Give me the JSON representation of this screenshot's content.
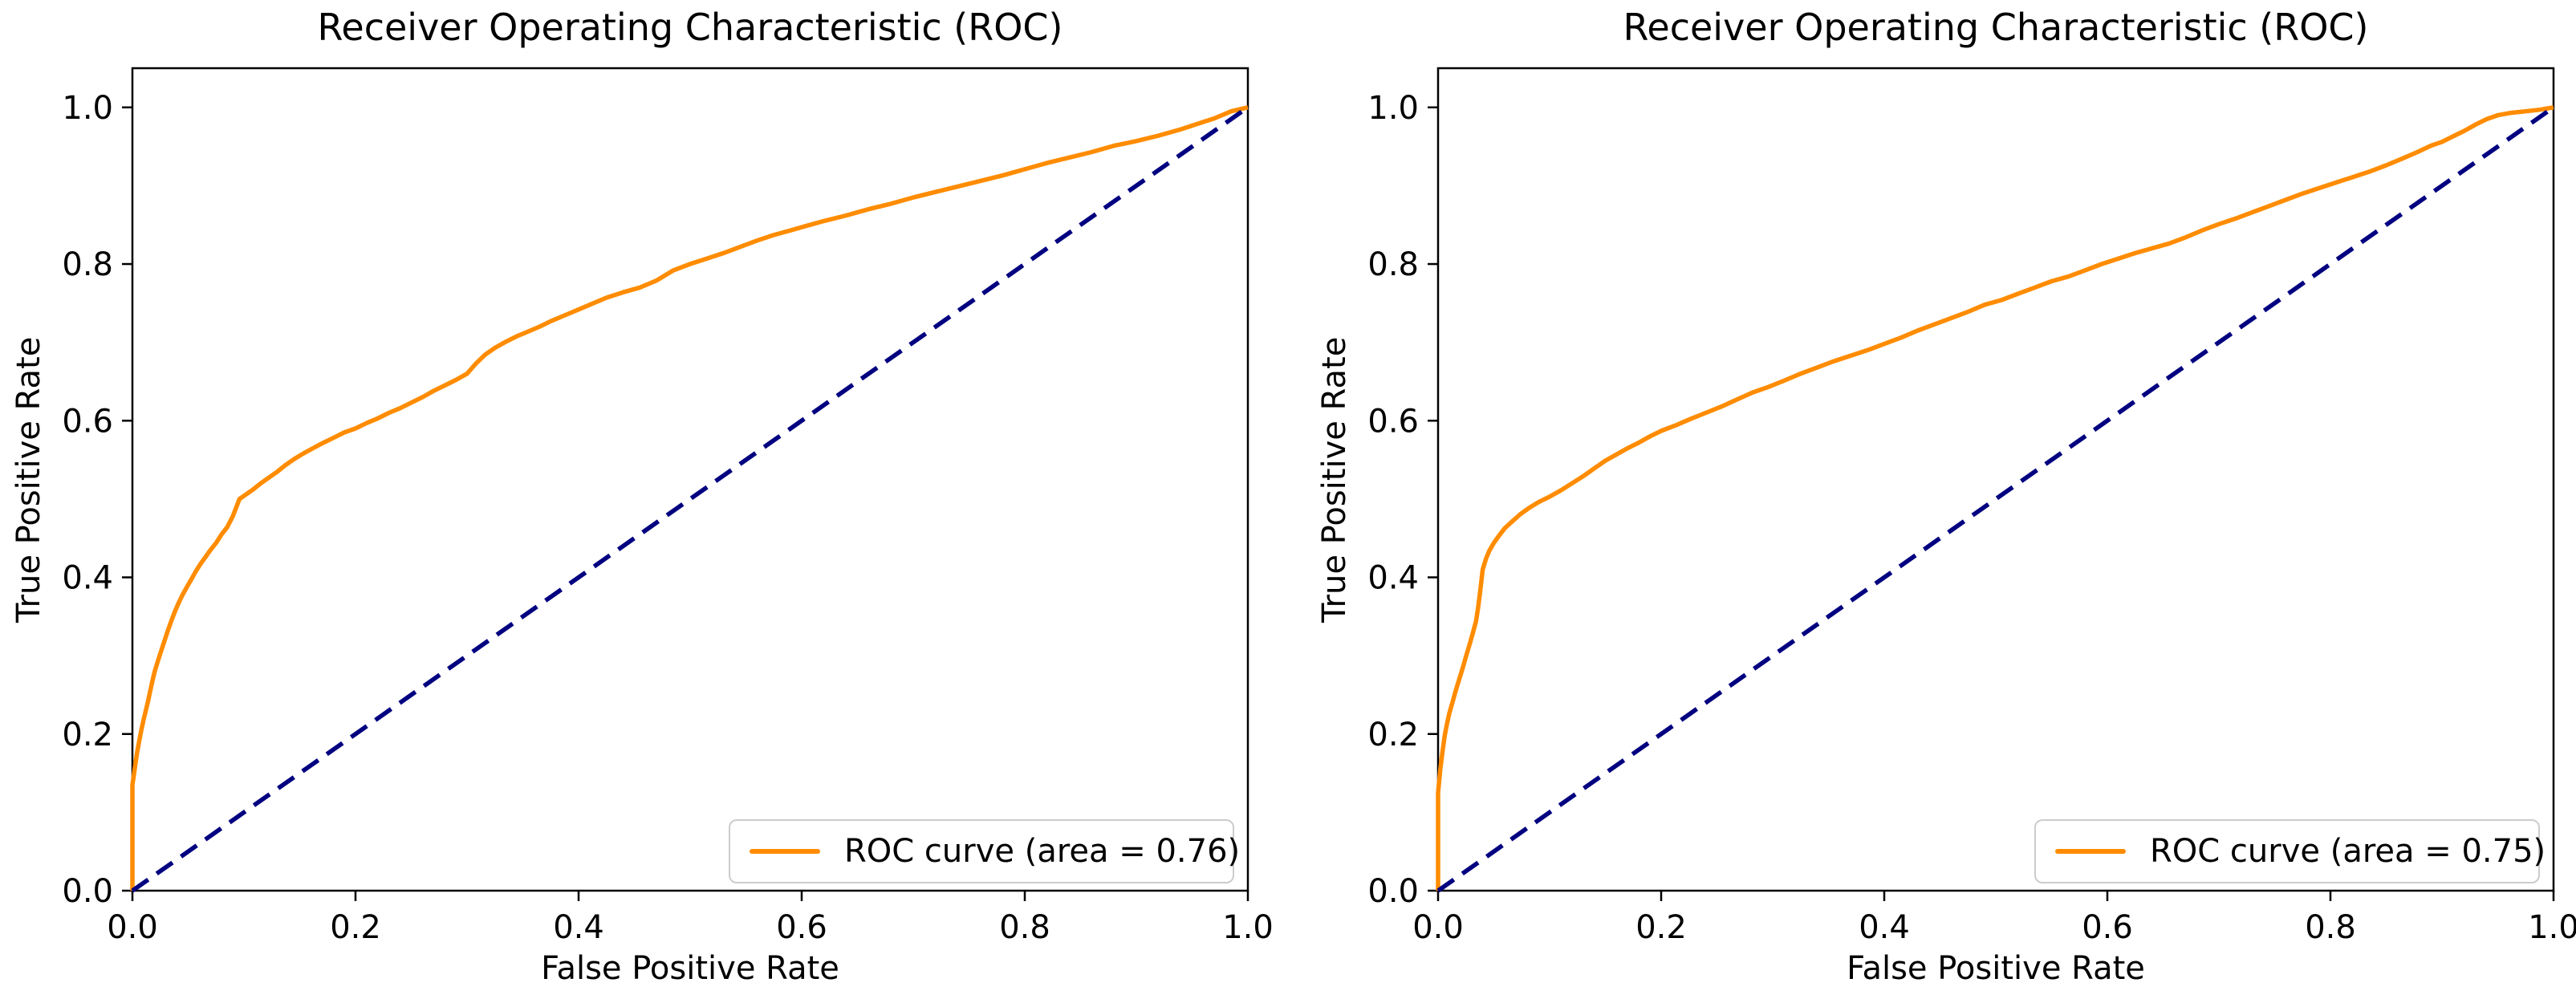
{
  "figure": {
    "colors": {
      "background": "#ffffff",
      "text": "#000000",
      "spine": "#000000",
      "roc_curve": "#FF8C00",
      "chance_line": "#000080",
      "legend_border": "#cccccc"
    }
  },
  "chart_data": [
    {
      "type": "line",
      "title": "Receiver Operating Characteristic (ROC)",
      "xlabel": "False Positive Rate",
      "ylabel": "True Positive Rate",
      "xlim": [
        0.0,
        1.0
      ],
      "ylim": [
        0.0,
        1.05
      ],
      "grid": false,
      "x_ticks": [
        0.0,
        0.2,
        0.4,
        0.6,
        0.8,
        1.0
      ],
      "x_tick_labels": [
        "0.0",
        "0.2",
        "0.4",
        "0.6",
        "0.8",
        "1.0"
      ],
      "y_ticks": [
        0.0,
        0.2,
        0.4,
        0.6,
        0.8,
        1.0
      ],
      "y_tick_labels": [
        "0.0",
        "0.2",
        "0.4",
        "0.6",
        "0.8",
        "1.0"
      ],
      "auc": 0.76,
      "legend": {
        "position": "lower right",
        "label": "ROC curve (area = 0.76)"
      },
      "series": [
        {
          "name": "ROC curve",
          "color": "#FF8C00",
          "style": "solid",
          "points": [
            [
              0,
              0
            ],
            [
              0,
              0.135
            ],
            [
              0.002,
              0.155
            ],
            [
              0.004,
              0.175
            ],
            [
              0.006,
              0.19
            ],
            [
              0.008,
              0.205
            ],
            [
              0.01,
              0.218
            ],
            [
              0.012,
              0.23
            ],
            [
              0.014,
              0.242
            ],
            [
              0.016,
              0.255
            ],
            [
              0.018,
              0.268
            ],
            [
              0.02,
              0.28
            ],
            [
              0.023,
              0.294
            ],
            [
              0.026,
              0.307
            ],
            [
              0.029,
              0.32
            ],
            [
              0.032,
              0.333
            ],
            [
              0.035,
              0.345
            ],
            [
              0.038,
              0.356
            ],
            [
              0.041,
              0.366
            ],
            [
              0.045,
              0.378
            ],
            [
              0.049,
              0.388
            ],
            [
              0.053,
              0.398
            ],
            [
              0.057,
              0.408
            ],
            [
              0.061,
              0.417
            ],
            [
              0.065,
              0.425
            ],
            [
              0.07,
              0.435
            ],
            [
              0.075,
              0.444
            ],
            [
              0.08,
              0.455
            ],
            [
              0.085,
              0.464
            ],
            [
              0.09,
              0.478
            ],
            [
              0.096,
              0.5
            ],
            [
              0.102,
              0.506
            ],
            [
              0.108,
              0.512
            ],
            [
              0.115,
              0.52
            ],
            [
              0.122,
              0.527
            ],
            [
              0.13,
              0.535
            ],
            [
              0.137,
              0.543
            ],
            [
              0.145,
              0.551
            ],
            [
              0.153,
              0.558
            ],
            [
              0.162,
              0.565
            ],
            [
              0.17,
              0.571
            ],
            [
              0.18,
              0.578
            ],
            [
              0.19,
              0.585
            ],
            [
              0.2,
              0.59
            ],
            [
              0.21,
              0.597
            ],
            [
              0.22,
              0.603
            ],
            [
              0.23,
              0.61
            ],
            [
              0.24,
              0.616
            ],
            [
              0.25,
              0.623
            ],
            [
              0.26,
              0.63
            ],
            [
              0.27,
              0.638
            ],
            [
              0.28,
              0.645
            ],
            [
              0.29,
              0.652
            ],
            [
              0.3,
              0.66
            ],
            [
              0.308,
              0.673
            ],
            [
              0.316,
              0.684
            ],
            [
              0.325,
              0.693
            ],
            [
              0.335,
              0.701
            ],
            [
              0.345,
              0.708
            ],
            [
              0.355,
              0.714
            ],
            [
              0.365,
              0.72
            ],
            [
              0.375,
              0.727
            ],
            [
              0.385,
              0.733
            ],
            [
              0.395,
              0.739
            ],
            [
              0.41,
              0.748
            ],
            [
              0.425,
              0.757
            ],
            [
              0.44,
              0.764
            ],
            [
              0.455,
              0.77
            ],
            [
              0.47,
              0.779
            ],
            [
              0.485,
              0.792
            ],
            [
              0.5,
              0.8
            ],
            [
              0.515,
              0.807
            ],
            [
              0.53,
              0.814
            ],
            [
              0.545,
              0.822
            ],
            [
              0.56,
              0.83
            ],
            [
              0.575,
              0.837
            ],
            [
              0.59,
              0.843
            ],
            [
              0.605,
              0.849
            ],
            [
              0.62,
              0.855
            ],
            [
              0.64,
              0.862
            ],
            [
              0.66,
              0.87
            ],
            [
              0.68,
              0.877
            ],
            [
              0.7,
              0.885
            ],
            [
              0.72,
              0.892
            ],
            [
              0.74,
              0.899
            ],
            [
              0.76,
              0.906
            ],
            [
              0.78,
              0.913
            ],
            [
              0.8,
              0.921
            ],
            [
              0.82,
              0.929
            ],
            [
              0.84,
              0.936
            ],
            [
              0.86,
              0.943
            ],
            [
              0.88,
              0.951
            ],
            [
              0.9,
              0.957
            ],
            [
              0.92,
              0.964
            ],
            [
              0.94,
              0.972
            ],
            [
              0.955,
              0.979
            ],
            [
              0.97,
              0.986
            ],
            [
              0.985,
              0.995
            ],
            [
              1,
              1
            ]
          ]
        },
        {
          "name": "chance line",
          "color": "#000080",
          "style": "dashed",
          "points": [
            [
              0,
              0
            ],
            [
              1,
              1
            ]
          ]
        }
      ]
    },
    {
      "type": "line",
      "title": "Receiver Operating Characteristic (ROC)",
      "xlabel": "False Positive Rate",
      "ylabel": "True Positive Rate",
      "xlim": [
        0.0,
        1.0
      ],
      "ylim": [
        0.0,
        1.05
      ],
      "grid": false,
      "x_ticks": [
        0.0,
        0.2,
        0.4,
        0.6,
        0.8,
        1.0
      ],
      "x_tick_labels": [
        "0.0",
        "0.2",
        "0.4",
        "0.6",
        "0.8",
        "1.0"
      ],
      "y_ticks": [
        0.0,
        0.2,
        0.4,
        0.6,
        0.8,
        1.0
      ],
      "y_tick_labels": [
        "0.0",
        "0.2",
        "0.4",
        "0.6",
        "0.8",
        "1.0"
      ],
      "auc": 0.75,
      "legend": {
        "position": "lower right",
        "label": "ROC curve (area = 0.75)"
      },
      "series": [
        {
          "name": "ROC curve",
          "color": "#FF8C00",
          "style": "solid",
          "points": [
            [
              0,
              0
            ],
            [
              0,
              0.125
            ],
            [
              0.002,
              0.155
            ],
            [
              0.004,
              0.178
            ],
            [
              0.006,
              0.198
            ],
            [
              0.008,
              0.213
            ],
            [
              0.01,
              0.226
            ],
            [
              0.013,
              0.241
            ],
            [
              0.016,
              0.256
            ],
            [
              0.019,
              0.27
            ],
            [
              0.022,
              0.284
            ],
            [
              0.025,
              0.299
            ],
            [
              0.028,
              0.313
            ],
            [
              0.031,
              0.328
            ],
            [
              0.034,
              0.344
            ],
            [
              0.036,
              0.362
            ],
            [
              0.038,
              0.385
            ],
            [
              0.04,
              0.41
            ],
            [
              0.043,
              0.424
            ],
            [
              0.046,
              0.434
            ],
            [
              0.05,
              0.444
            ],
            [
              0.055,
              0.454
            ],
            [
              0.06,
              0.463
            ],
            [
              0.067,
              0.472
            ],
            [
              0.074,
              0.481
            ],
            [
              0.082,
              0.489
            ],
            [
              0.09,
              0.496
            ],
            [
              0.1,
              0.503
            ],
            [
              0.11,
              0.511
            ],
            [
              0.12,
              0.52
            ],
            [
              0.13,
              0.529
            ],
            [
              0.14,
              0.539
            ],
            [
              0.15,
              0.549
            ],
            [
              0.16,
              0.557
            ],
            [
              0.17,
              0.565
            ],
            [
              0.18,
              0.572
            ],
            [
              0.19,
              0.58
            ],
            [
              0.2,
              0.587
            ],
            [
              0.213,
              0.594
            ],
            [
              0.226,
              0.602
            ],
            [
              0.24,
              0.61
            ],
            [
              0.254,
              0.618
            ],
            [
              0.268,
              0.627
            ],
            [
              0.282,
              0.636
            ],
            [
              0.296,
              0.643
            ],
            [
              0.31,
              0.651
            ],
            [
              0.325,
              0.66
            ],
            [
              0.34,
              0.668
            ],
            [
              0.355,
              0.676
            ],
            [
              0.37,
              0.683
            ],
            [
              0.385,
              0.69
            ],
            [
              0.4,
              0.698
            ],
            [
              0.415,
              0.706
            ],
            [
              0.43,
              0.715
            ],
            [
              0.445,
              0.723
            ],
            [
              0.46,
              0.731
            ],
            [
              0.475,
              0.739
            ],
            [
              0.49,
              0.748
            ],
            [
              0.505,
              0.754
            ],
            [
              0.52,
              0.762
            ],
            [
              0.535,
              0.77
            ],
            [
              0.55,
              0.778
            ],
            [
              0.565,
              0.784
            ],
            [
              0.58,
              0.792
            ],
            [
              0.595,
              0.8
            ],
            [
              0.61,
              0.807
            ],
            [
              0.625,
              0.814
            ],
            [
              0.64,
              0.82
            ],
            [
              0.655,
              0.826
            ],
            [
              0.67,
              0.834
            ],
            [
              0.685,
              0.843
            ],
            [
              0.7,
              0.851
            ],
            [
              0.715,
              0.858
            ],
            [
              0.73,
              0.866
            ],
            [
              0.745,
              0.874
            ],
            [
              0.76,
              0.882
            ],
            [
              0.775,
              0.89
            ],
            [
              0.79,
              0.897
            ],
            [
              0.805,
              0.904
            ],
            [
              0.82,
              0.911
            ],
            [
              0.835,
              0.918
            ],
            [
              0.85,
              0.926
            ],
            [
              0.865,
              0.935
            ],
            [
              0.878,
              0.943
            ],
            [
              0.89,
              0.951
            ],
            [
              0.9,
              0.956
            ],
            [
              0.91,
              0.963
            ],
            [
              0.92,
              0.97
            ],
            [
              0.93,
              0.978
            ],
            [
              0.94,
              0.985
            ],
            [
              0.95,
              0.99
            ],
            [
              0.962,
              0.993
            ],
            [
              0.975,
              0.995
            ],
            [
              0.988,
              0.997
            ],
            [
              1,
              1
            ]
          ]
        },
        {
          "name": "chance line",
          "color": "#000080",
          "style": "dashed",
          "points": [
            [
              0,
              0
            ],
            [
              1,
              1
            ]
          ]
        }
      ]
    }
  ]
}
